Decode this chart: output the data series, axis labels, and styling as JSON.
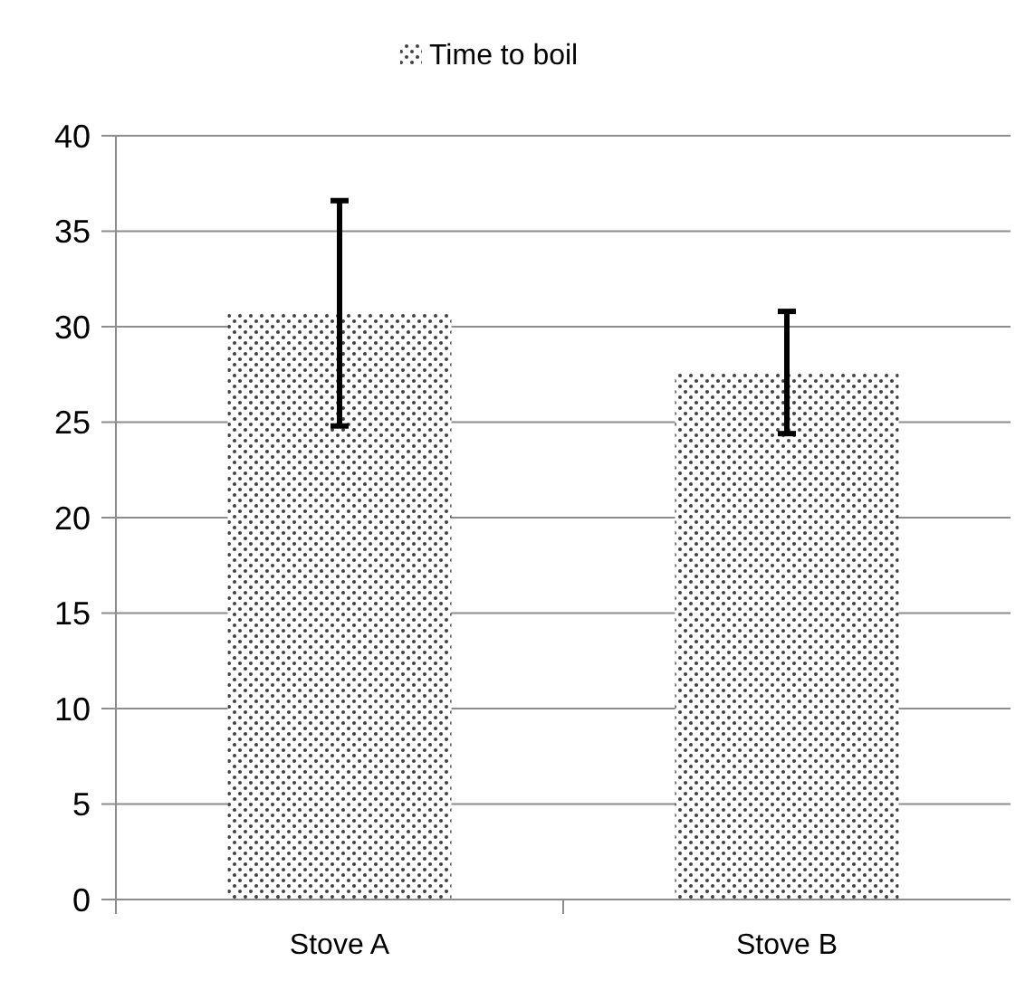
{
  "chart_data": {
    "type": "bar",
    "categories": [
      "Stove A",
      "Stove B"
    ],
    "series": [
      {
        "name": "Time to boil",
        "color": "#404040",
        "values": [
          30.7,
          27.6
        ],
        "errors": [
          5.9,
          3.2
        ]
      }
    ],
    "ylim": [
      0,
      40
    ],
    "yticks": [
      0,
      5,
      10,
      15,
      20,
      25,
      30,
      35,
      40
    ],
    "grid": "y",
    "legend": "top"
  }
}
